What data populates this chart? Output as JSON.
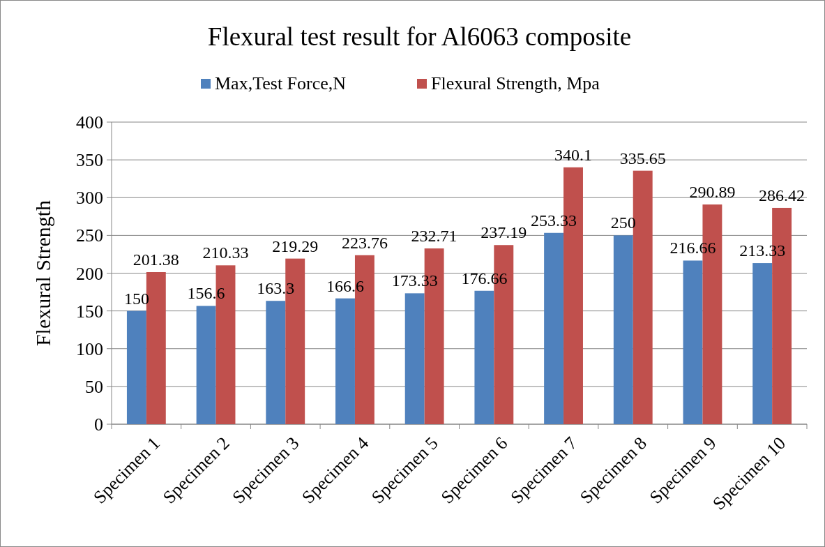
{
  "chart_data": {
    "type": "bar",
    "title": "Flexural test result for Al6063 composite",
    "ylabel": "Flexural Strength",
    "categories": [
      "Specimen 1",
      "Specimen 2",
      "Specimen 3",
      "Specimen 4",
      "Specimen 5",
      "Specimen 6",
      "Specimen 7",
      "Specimen 8",
      "Specimen 9",
      "Specimen 10"
    ],
    "series": [
      {
        "name": "Max,Test Force,N",
        "color": "#4f81bd",
        "values": [
          150,
          156.6,
          163.3,
          166.6,
          173.33,
          176.66,
          253.33,
          250,
          216.66,
          213.33
        ]
      },
      {
        "name": "Flexural Strength, Mpa",
        "color": "#c0504d",
        "values": [
          201.38,
          210.33,
          219.29,
          223.76,
          232.71,
          237.19,
          340.1,
          335.65,
          290.89,
          286.42
        ]
      }
    ],
    "ylim": [
      0,
      400
    ],
    "yticks": [
      0,
      50,
      100,
      150,
      200,
      250,
      300,
      350,
      400
    ],
    "grid": "y",
    "legend": "top",
    "data_labels": true
  }
}
